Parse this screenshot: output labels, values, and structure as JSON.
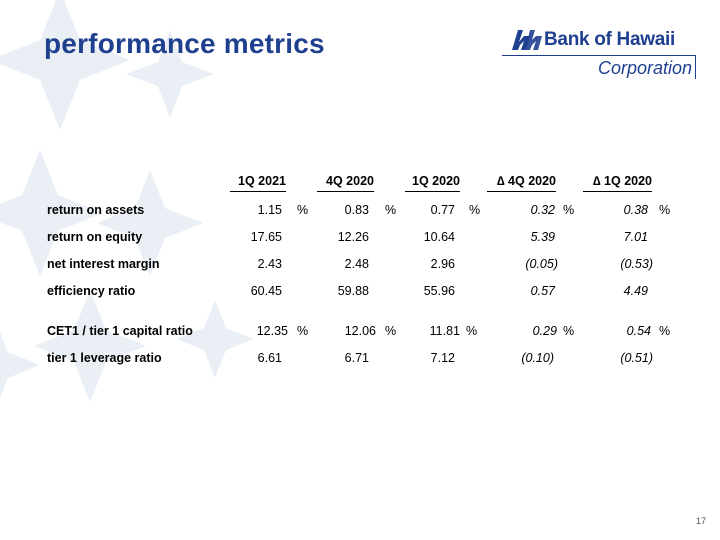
{
  "title": "performance metrics",
  "logo": {
    "name": "Bank of Hawaii",
    "sub": "Corporation",
    "icon": "boh-logo-icon"
  },
  "columns": [
    "1Q 2021",
    "4Q 2020",
    "1Q 2020",
    "∆ 4Q 2020",
    "∆ 1Q 2020"
  ],
  "percent_sign": "%",
  "rows": [
    {
      "label": "return on assets",
      "values": [
        "1.15",
        "0.83",
        "0.77",
        "0.32",
        "0.38"
      ],
      "percent": true
    },
    {
      "label": "return on equity",
      "values": [
        "17.65",
        "12.26",
        "10.64",
        "5.39",
        "7.01"
      ],
      "percent": false
    },
    {
      "label": "net interest margin",
      "values": [
        "2.43",
        "2.48",
        "2.96",
        "(0.05)",
        "(0.53)"
      ],
      "percent": false
    },
    {
      "label": "efficiency ratio",
      "values": [
        "60.45",
        "59.88",
        "55.96",
        "0.57",
        "4.49"
      ],
      "percent": false
    },
    {
      "label": "CET1 / tier 1 capital ratio",
      "values": [
        "12.35",
        "12.06",
        "11.81",
        "0.29",
        "0.54"
      ],
      "percent": true
    },
    {
      "label": "tier 1 leverage ratio",
      "values": [
        "6.61",
        "6.71",
        "7.12",
        "(0.10)",
        "(0.51)"
      ],
      "percent": false
    }
  ],
  "page_number": "17",
  "colors": {
    "brand": "#1f3f8f",
    "decoration": "#e8eef4"
  }
}
